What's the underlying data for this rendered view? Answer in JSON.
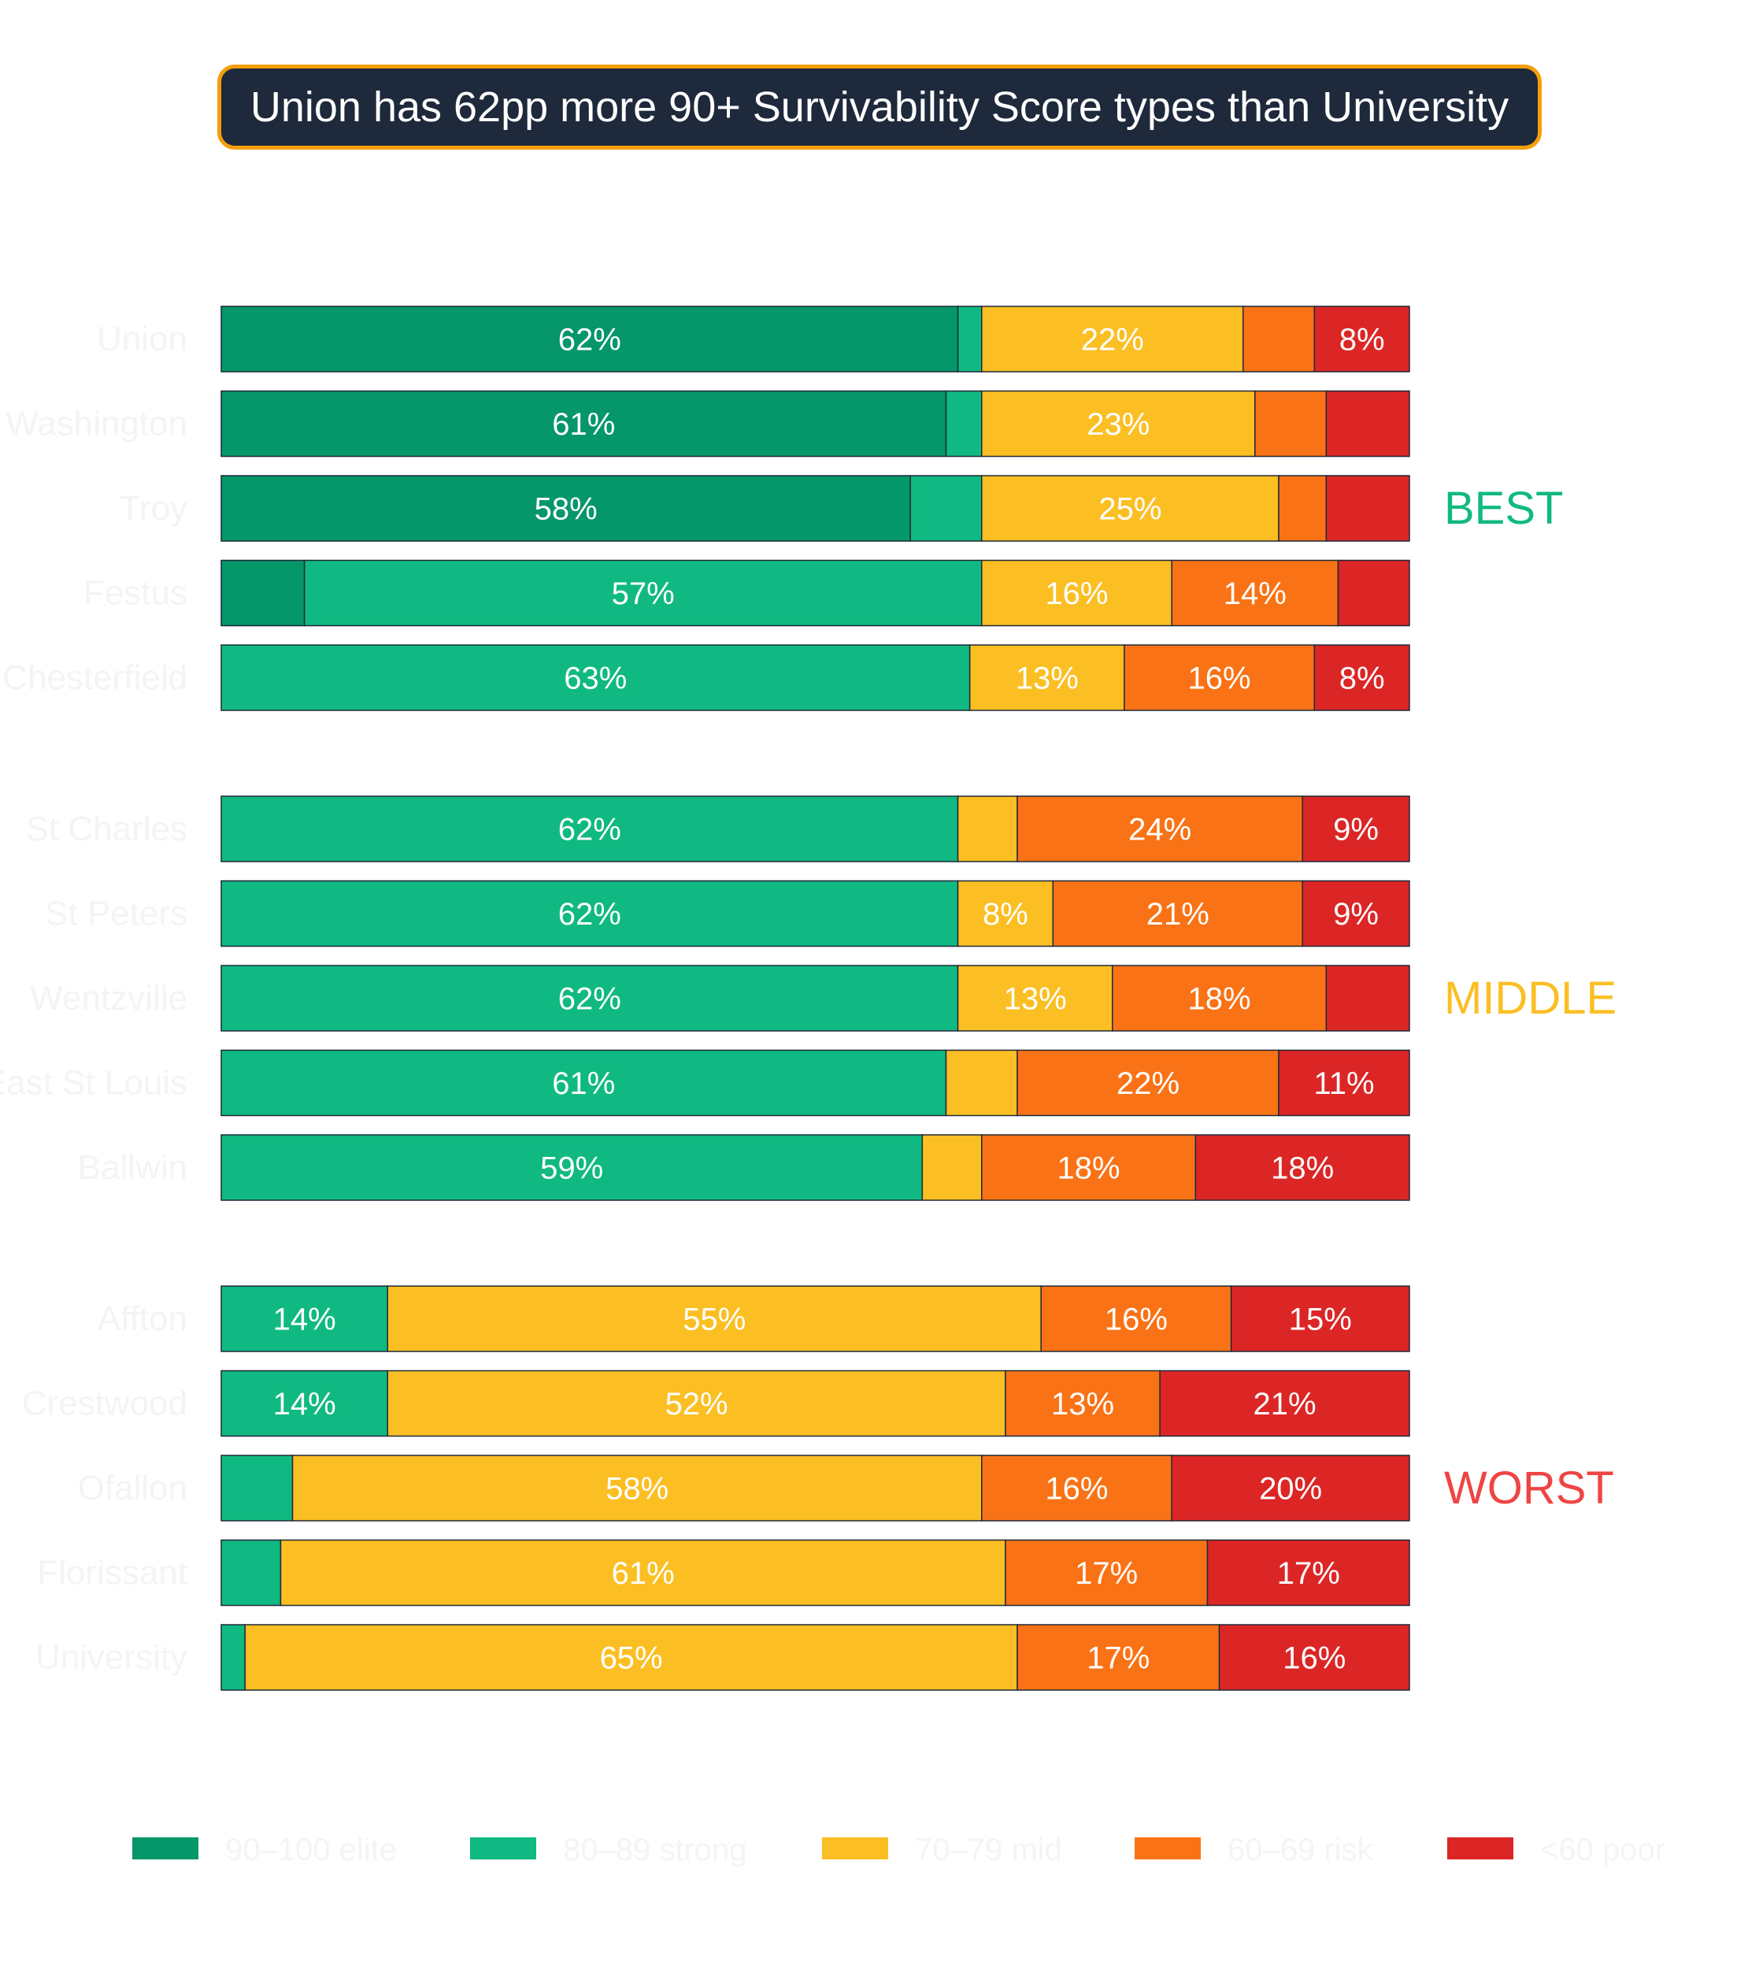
{
  "title": "Union has 62pp more 90+ Survivability Score types than University",
  "colors": {
    "title_bg": "#1e293b",
    "title_border": "#f59e0b",
    "elite": "#059669",
    "strong": "#10b981",
    "mid": "#fbbf24",
    "risk": "#f97316",
    "poor": "#dc2626",
    "best": "#10b981",
    "middle": "#fbbf24",
    "worst": "#ef4444"
  },
  "chart_data": {
    "type": "bar",
    "orientation": "horizontal",
    "stacked": true,
    "normalized": true,
    "title": "Union has 62pp more 90+ Survivability Score types than University",
    "xlim": [
      0,
      100
    ],
    "grid": false,
    "legend_position": "bottom",
    "series_names": [
      "90–100 elite",
      "80–89 strong",
      "70–79 mid",
      "60–69 risk",
      "<60 poor"
    ],
    "groups": [
      {
        "label": "BEST",
        "rows": [
          {
            "name": "Union",
            "values": [
              62,
              2,
              22,
              6,
              8
            ]
          },
          {
            "name": "Washington",
            "values": [
              61,
              3,
              23,
              6,
              7
            ]
          },
          {
            "name": "Troy",
            "values": [
              58,
              6,
              25,
              4,
              7
            ]
          },
          {
            "name": "Festus",
            "values": [
              7,
              57,
              16,
              14,
              6
            ]
          },
          {
            "name": "Chesterfield",
            "values": [
              0,
              63,
              13,
              16,
              8
            ]
          }
        ]
      },
      {
        "label": "MIDDLE",
        "rows": [
          {
            "name": "St Charles",
            "values": [
              0,
              62,
              5,
              24,
              9
            ]
          },
          {
            "name": "St Peters",
            "values": [
              0,
              62,
              8,
              21,
              9
            ]
          },
          {
            "name": "Wentzville",
            "values": [
              0,
              62,
              13,
              18,
              7
            ]
          },
          {
            "name": "East St Louis",
            "values": [
              0,
              61,
              6,
              22,
              11
            ]
          },
          {
            "name": "Ballwin",
            "values": [
              0,
              59,
              5,
              18,
              18
            ]
          }
        ]
      },
      {
        "label": "WORST",
        "rows": [
          {
            "name": "Affton",
            "values": [
              0,
              14,
              55,
              16,
              15
            ]
          },
          {
            "name": "Crestwood",
            "values": [
              0,
              14,
              52,
              13,
              21
            ]
          },
          {
            "name": "Ofallon",
            "values": [
              0,
              6,
              58,
              16,
              20
            ]
          },
          {
            "name": "Florissant",
            "values": [
              0,
              5,
              61,
              17,
              17
            ]
          },
          {
            "name": "University",
            "values": [
              0,
              2,
              65,
              17,
              16
            ]
          }
        ]
      }
    ],
    "label_threshold": 8
  }
}
